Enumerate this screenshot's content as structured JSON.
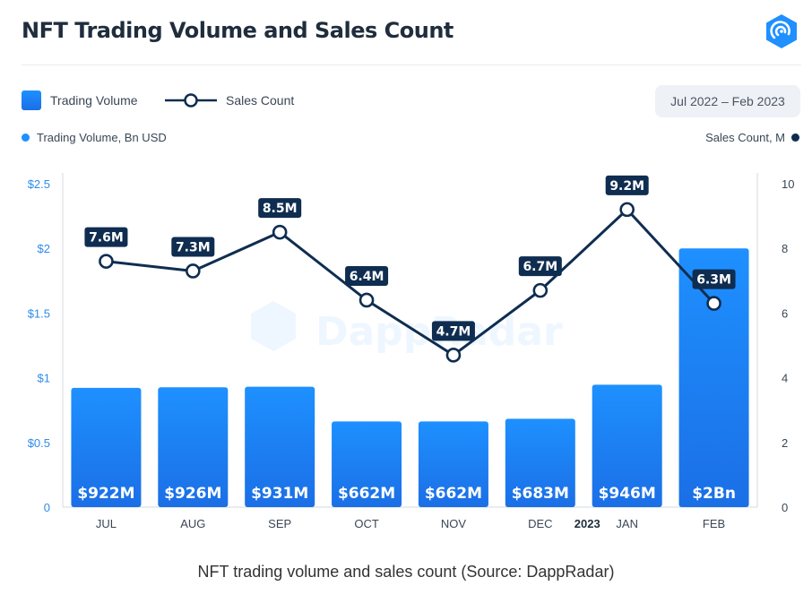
{
  "title": "NFT Trading Volume and Sales Count",
  "legend": {
    "bar_label": "Trading Volume",
    "line_label": "Sales Count"
  },
  "date_range": "Jul 2022 – Feb 2023",
  "axis_titles": {
    "left": "Trading Volume, Bn USD",
    "right": "Sales Count, M"
  },
  "watermark": "DappRadar",
  "caption": "NFT trading volume and sales count (Source: DappRadar)",
  "colors": {
    "bar": "#1b7cf0",
    "line": "#0f2d50",
    "accent": "#1e90ff"
  },
  "chart_data": {
    "type": "bar",
    "categories": [
      "JUL",
      "AUG",
      "SEP",
      "OCT",
      "NOV",
      "DEC",
      "JAN",
      "FEB"
    ],
    "year_marker": {
      "category": "JAN",
      "label": "2023"
    },
    "series": [
      {
        "name": "Trading Volume",
        "type": "bar",
        "axis": "left",
        "values": [
          0.922,
          0.926,
          0.931,
          0.662,
          0.662,
          0.683,
          0.946,
          2.0
        ],
        "labels": [
          "$922M",
          "$926M",
          "$931M",
          "$662M",
          "$662M",
          "$683M",
          "$946M",
          "$2Bn"
        ]
      },
      {
        "name": "Sales Count",
        "type": "line",
        "axis": "right",
        "values": [
          7.6,
          7.3,
          8.5,
          6.4,
          4.7,
          6.7,
          9.2,
          6.3
        ],
        "labels": [
          "7.6M",
          "7.3M",
          "8.5M",
          "6.4M",
          "4.7M",
          "6.7M",
          "9.2M",
          "6.3M"
        ]
      }
    ],
    "y_left": {
      "range": [
        0,
        2.5
      ],
      "ticks": [
        0,
        0.5,
        1,
        1.5,
        2,
        2.5
      ],
      "tick_labels": [
        "0",
        "$0.5",
        "$1",
        "$1.5",
        "$2",
        "$2.5"
      ]
    },
    "y_right": {
      "range": [
        0,
        10
      ],
      "ticks": [
        0,
        2,
        4,
        6,
        8,
        10
      ],
      "tick_labels": [
        "0",
        "2",
        "4",
        "6",
        "8",
        "10"
      ]
    },
    "grid": false,
    "legend_position": "top-left"
  }
}
